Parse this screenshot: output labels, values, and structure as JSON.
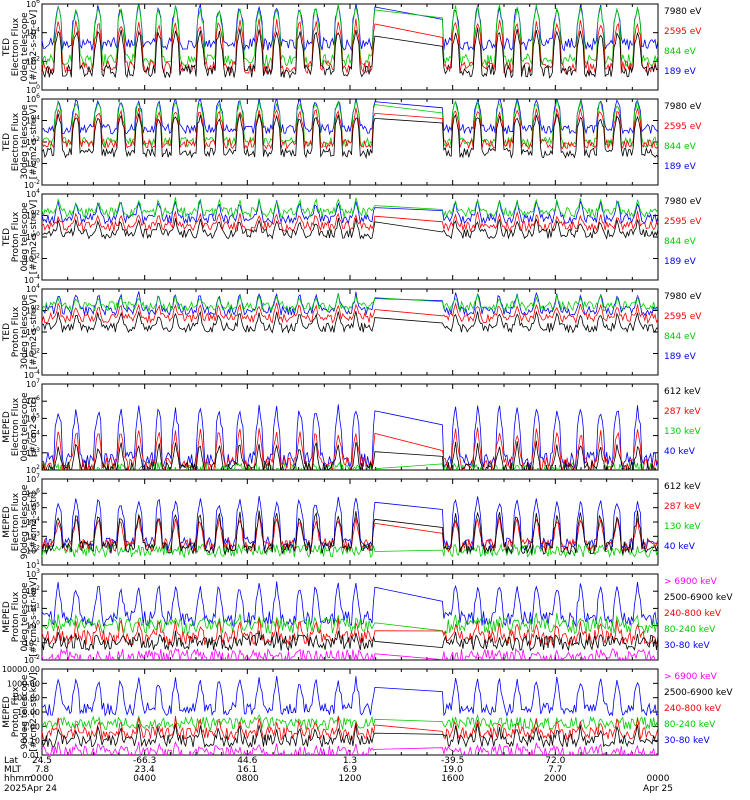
{
  "chart_data": [
    {
      "type": "line",
      "ylabel": [
        "TED",
        "Electron Flux",
        "0deg telescope",
        "[#/cm2-s-str-eV]"
      ],
      "y_scale": "log",
      "y_ticks": [
        "10^6",
        "10^4",
        "10^2",
        "10^0"
      ],
      "legend": [
        {
          "label": "7980 eV",
          "color": "#000000"
        },
        {
          "label": "2595 eV",
          "color": "#ff0000"
        },
        {
          "label": "844 eV",
          "color": "#00cc00"
        },
        {
          "label": "189 eV",
          "color": "#0000ff"
        }
      ],
      "series_levels": [
        {
          "name": "7980 eV",
          "base_log": 1.3,
          "spike_log": 4.2
        },
        {
          "name": "2595 eV",
          "base_log": 1.6,
          "spike_log": 4.8
        },
        {
          "name": "844 eV",
          "base_log": 2.1,
          "spike_log": 5.8
        },
        {
          "name": "189 eV",
          "base_log": 3.2,
          "spike_log": 5.9
        }
      ]
    },
    {
      "type": "line",
      "ylabel": [
        "TED",
        "Electron Flux",
        "30deg telescope",
        "[#/cm2-s-str-eV]"
      ],
      "y_scale": "log",
      "y_ticks": [
        "10^6",
        "10^4",
        "10^2",
        "10^0",
        "10^-2"
      ],
      "legend": [
        {
          "label": "7980 eV",
          "color": "#000000"
        },
        {
          "label": "2595 eV",
          "color": "#ff0000"
        },
        {
          "label": "844 eV",
          "color": "#00cc00"
        },
        {
          "label": "189 eV",
          "color": "#0000ff"
        }
      ],
      "series_levels": [
        {
          "name": "7980 eV",
          "base_log": 1.0,
          "spike_log": 4.5
        },
        {
          "name": "2595 eV",
          "base_log": 1.8,
          "spike_log": 5.0
        },
        {
          "name": "844 eV",
          "base_log": 2.0,
          "spike_log": 5.8
        },
        {
          "name": "189 eV",
          "base_log": 3.2,
          "spike_log": 6.0
        }
      ]
    },
    {
      "type": "line",
      "ylabel": [
        "TED",
        "Proton Flux",
        "0deg telescope",
        "[#/cm2-s-str-eV]"
      ],
      "y_scale": "log",
      "y_ticks": [
        "10^4",
        "10^2",
        "10^0",
        "10^-2",
        "10^-4"
      ],
      "legend": [
        {
          "label": "7980 eV",
          "color": "#000000"
        },
        {
          "label": "2595 eV",
          "color": "#ff0000"
        },
        {
          "label": "844 eV",
          "color": "#00cc00"
        },
        {
          "label": "189 eV",
          "color": "#0000ff"
        }
      ],
      "series_levels": [
        {
          "name": "7980 eV",
          "base_log": 0.3,
          "spike_log": 1.6
        },
        {
          "name": "2595 eV",
          "base_log": 1.0,
          "spike_log": 2.2
        },
        {
          "name": "844 eV",
          "base_log": 2.3,
          "spike_log": 3.5
        },
        {
          "name": "189 eV",
          "base_log": 1.7,
          "spike_log": 3.3
        }
      ]
    },
    {
      "type": "line",
      "ylabel": [
        "TED",
        "Proton Flux",
        "30deg telescope",
        "[#/cm2-s-str-eV]"
      ],
      "y_scale": "log",
      "y_ticks": [
        "10^4",
        "10^2",
        "10^0",
        "10^-2",
        "10^-4"
      ],
      "legend": [
        {
          "label": "7980 eV",
          "color": "#000000"
        },
        {
          "label": "2595 eV",
          "color": "#ff0000"
        },
        {
          "label": "844 eV",
          "color": "#00cc00"
        },
        {
          "label": "189 eV",
          "color": "#0000ff"
        }
      ],
      "series_levels": [
        {
          "name": "7980 eV",
          "base_log": 0.4,
          "spike_log": 1.8
        },
        {
          "name": "2595 eV",
          "base_log": 1.3,
          "spike_log": 2.6
        },
        {
          "name": "844 eV",
          "base_log": 2.4,
          "spike_log": 3.4
        },
        {
          "name": "189 eV",
          "base_log": 2.0,
          "spike_log": 3.6
        }
      ]
    },
    {
      "type": "line",
      "ylabel": [
        "MEPED",
        "Electron Flux",
        "0deg telescope",
        "[#/cm2-s-str]"
      ],
      "y_scale": "log",
      "y_ticks": [
        "10^7",
        "10^6",
        "10^5",
        "10^4",
        "10^3",
        "10^2"
      ],
      "legend": [
        {
          "label": "612 keV",
          "color": "#000000"
        },
        {
          "label": "287 keV",
          "color": "#ff0000"
        },
        {
          "label": "130 keV",
          "color": "#00cc00"
        },
        {
          "label": "40 keV",
          "color": "#0000ff"
        }
      ],
      "series_levels": [
        {
          "name": "612 keV",
          "base_log": 2.1,
          "spike_log": 3.6
        },
        {
          "name": "287 keV",
          "base_log": 2.3,
          "spike_log": 4.3
        },
        {
          "name": "130 keV",
          "base_log": 2.0,
          "spike_log": 2.2
        },
        {
          "name": "40 keV",
          "base_log": 2.6,
          "spike_log": 5.6
        }
      ]
    },
    {
      "type": "line",
      "ylabel": [
        "MEPED",
        "Electron Flux",
        "90deg telescope",
        "[#/cm2-s-str]"
      ],
      "y_scale": "log",
      "y_ticks": [
        "10^7",
        "10^6",
        "10^5",
        "10^4",
        "10^3",
        "10^2",
        "10^1"
      ],
      "legend": [
        {
          "label": "612 keV",
          "color": "#000000"
        },
        {
          "label": "287 keV",
          "color": "#ff0000"
        },
        {
          "label": "130 keV",
          "color": "#00cc00"
        },
        {
          "label": "40 keV",
          "color": "#0000ff"
        }
      ],
      "series_levels": [
        {
          "name": "612 keV",
          "base_log": 2.2,
          "spike_log": 4.6
        },
        {
          "name": "287 keV",
          "base_log": 2.4,
          "spike_log": 4.3
        },
        {
          "name": "130 keV",
          "base_log": 2.0,
          "spike_log": 2.3
        },
        {
          "name": "40 keV",
          "base_log": 2.5,
          "spike_log": 5.6
        }
      ]
    },
    {
      "type": "line",
      "ylabel": [
        "MEPED",
        "Proton Flux",
        "0deg telescope",
        "[#/cm2-s-str-keV]"
      ],
      "y_scale": "log",
      "y_ticks": [
        "10^3",
        "10^2",
        "10^1",
        "10^0",
        "10^-1",
        "10^-2"
      ],
      "legend": [
        {
          "label": "> 6900 keV",
          "color": "#ff00ff"
        },
        {
          "label": "2500-6900 keV",
          "color": "#000000"
        },
        {
          "label": "240-800 keV",
          "color": "#ff0000"
        },
        {
          "label": "80-240 keV",
          "color": "#00cc00"
        },
        {
          "label": "30-80 keV",
          "color": "#0000ff"
        }
      ],
      "series_levels": [
        {
          "name": "> 6900 keV",
          "base_log": -1.8,
          "spike_log": -1.5
        },
        {
          "name": "2500-6900 keV",
          "base_log": -1.0,
          "spike_log": -0.5
        },
        {
          "name": "240-800 keV",
          "base_log": -0.7,
          "spike_log": 0.3
        },
        {
          "name": "80-240 keV",
          "base_log": 0.0,
          "spike_log": 0.6
        },
        {
          "name": "30-80 keV",
          "base_log": 0.4,
          "spike_log": 2.4
        }
      ]
    },
    {
      "type": "line",
      "ylabel": [
        "MEPED",
        "Proton Flux",
        "90deg telescope",
        "[#/cm2-s-str-keV]"
      ],
      "y_scale": "log",
      "y_ticks": [
        "10000.00",
        "1000.00",
        "100.00",
        "10.00",
        "1.00",
        "0.10",
        "0.01"
      ],
      "legend": [
        {
          "label": "> 6900 keV",
          "color": "#ff00ff"
        },
        {
          "label": "2500-6900 keV",
          "color": "#000000"
        },
        {
          "label": "240-800 keV",
          "color": "#ff0000"
        },
        {
          "label": "80-240 keV",
          "color": "#00cc00"
        },
        {
          "label": "30-80 keV",
          "color": "#0000ff"
        }
      ],
      "series_levels": [
        {
          "name": "> 6900 keV",
          "base_log": -1.8,
          "spike_log": -1.2
        },
        {
          "name": "2500-6900 keV",
          "base_log": -1.0,
          "spike_log": 0.0
        },
        {
          "name": "240-800 keV",
          "base_log": -0.5,
          "spike_log": 0.5
        },
        {
          "name": "80-240 keV",
          "base_log": 0.2,
          "spike_log": 0.6
        },
        {
          "name": "30-80 keV",
          "base_log": 1.2,
          "spike_log": 3.3
        }
      ]
    }
  ],
  "x_axis": {
    "rows": [
      {
        "label": "Lat",
        "values": [
          "24.5",
          "-66.3",
          "44.6",
          "1.3",
          "-39.5",
          "72.0",
          ""
        ]
      },
      {
        "label": "MLT",
        "values": [
          "7.8",
          "23.4",
          "16.1",
          "6.9",
          "19.0",
          "7.7",
          ""
        ]
      },
      {
        "label": "hhmm",
        "values": [
          "0000",
          "0400",
          "0800",
          "1200",
          "1600",
          "2000",
          "0000"
        ]
      },
      {
        "label": "2025",
        "values": [
          "Apr 24",
          "",
          "",
          "",
          "",
          "",
          "Apr 25"
        ]
      }
    ]
  },
  "data_gap": "between 1300 and 1540 UT (straight connecting lines)"
}
